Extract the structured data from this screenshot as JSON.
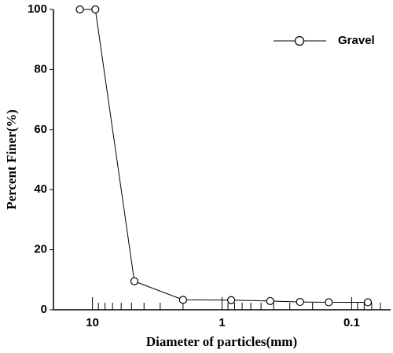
{
  "chart_data": {
    "type": "line",
    "x_label": "Diameter of particles(mm)",
    "y_label": "Percent Finer(%)",
    "x": [
      12.5,
      9.5,
      4.75,
      2.0,
      0.85,
      0.425,
      0.25,
      0.15,
      0.075
    ],
    "series": [
      {
        "name": "Gravel",
        "color": "#000000",
        "values": [
          100,
          100,
          9.5,
          3.3,
          3.2,
          2.9,
          2.6,
          2.5,
          2.5
        ]
      }
    ],
    "xscale": "log",
    "xreversed": true,
    "xlim": [
      20,
      0.05
    ],
    "xticks": [
      10,
      1,
      0.1
    ],
    "xminorticks": [
      9,
      8,
      7,
      6,
      5,
      4,
      3,
      2,
      0.9,
      0.8,
      0.7,
      0.6,
      0.5,
      0.4,
      0.3,
      0.2,
      0.09,
      0.08,
      0.07,
      0.06
    ],
    "ylim": [
      0,
      100
    ],
    "yticks": [
      0,
      20,
      40,
      60,
      80,
      100
    ],
    "legend": "upper right"
  }
}
